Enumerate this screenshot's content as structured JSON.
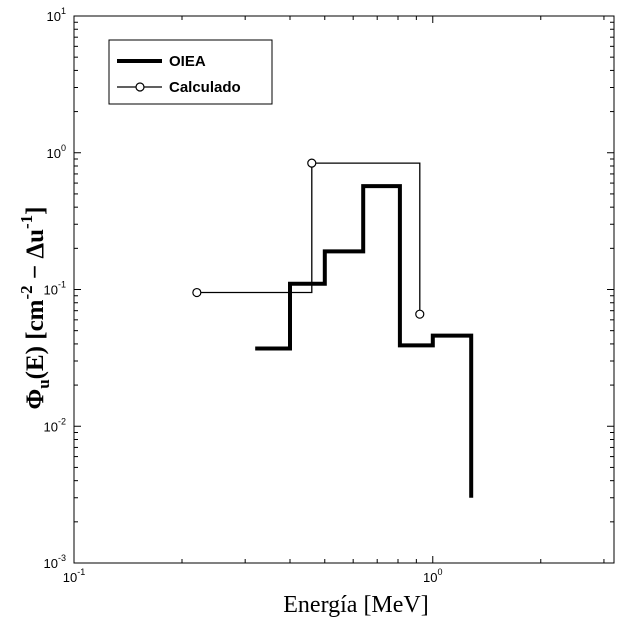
{
  "chart_data": {
    "type": "line",
    "xscale": "log",
    "yscale": "log",
    "xlim": [
      0.1,
      3.2
    ],
    "ylim": [
      0.001,
      10
    ],
    "xlabel": "Energía [MeV]",
    "ylabel": {
      "phi": "Φ",
      "sub": "u",
      "mid": "(E) [cm",
      "exp1": "-2",
      "dash": " − Δu",
      "exp2": "-1",
      "end": "]"
    },
    "x_ticks": [
      {
        "value": 0.1,
        "base": "10",
        "exp": "-1"
      },
      {
        "value": 1,
        "base": "10",
        "exp": "0"
      }
    ],
    "y_ticks": [
      {
        "value": 0.001,
        "base": "10",
        "exp": "-3"
      },
      {
        "value": 0.01,
        "base": "10",
        "exp": "-2"
      },
      {
        "value": 0.1,
        "base": "10",
        "exp": "-1"
      },
      {
        "value": 1,
        "base": "10",
        "exp": "0"
      },
      {
        "value": 10,
        "base": "10",
        "exp": "1"
      }
    ],
    "legend": {
      "position": "top-left"
    },
    "series": [
      {
        "name": "OIEA",
        "style": "thick-step",
        "color": "#000000",
        "points": [
          [
            0.32,
            0.037
          ],
          [
            0.4,
            0.037
          ],
          [
            0.4,
            0.11
          ],
          [
            0.5,
            0.11
          ],
          [
            0.5,
            0.19
          ],
          [
            0.64,
            0.19
          ],
          [
            0.64,
            0.57
          ],
          [
            0.81,
            0.57
          ],
          [
            0.81,
            0.039
          ],
          [
            1.0,
            0.039
          ],
          [
            1.0,
            0.046
          ],
          [
            1.28,
            0.046
          ],
          [
            1.28,
            0.003
          ]
        ]
      },
      {
        "name": "Calculado",
        "style": "thin-step-markers",
        "color": "#000000",
        "points": [
          [
            0.22,
            0.095
          ],
          [
            0.46,
            0.095
          ],
          [
            0.46,
            0.84
          ],
          [
            0.92,
            0.84
          ],
          [
            0.92,
            0.066
          ]
        ],
        "markers": [
          [
            0.22,
            0.095
          ],
          [
            0.46,
            0.84
          ],
          [
            0.92,
            0.066
          ]
        ]
      }
    ]
  }
}
